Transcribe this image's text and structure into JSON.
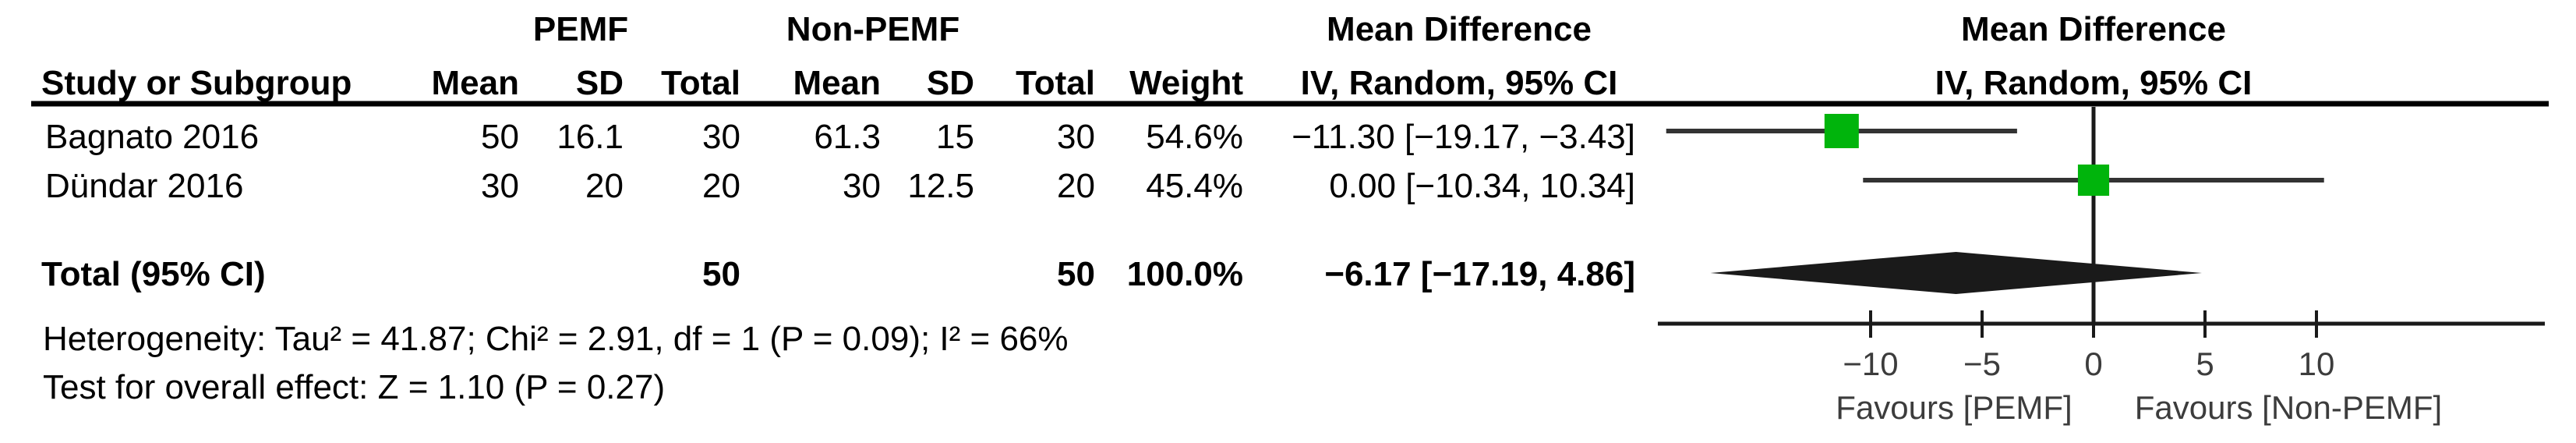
{
  "header": {
    "group1": "PEMF",
    "group2": "Non-PEMF",
    "effect_col_title": "Mean Difference",
    "effect_col_subtitle": "IV, Random, 95% CI",
    "plot_title": "Mean Difference",
    "plot_subtitle": "IV, Random, 95% CI",
    "study_col": "Study or Subgroup",
    "cols": {
      "mean1": "Mean",
      "sd1": "SD",
      "total1": "Total",
      "mean2": "Mean",
      "sd2": "SD",
      "total2": "Total",
      "weight": "Weight"
    }
  },
  "rows": [
    {
      "study": "Bagnato 2016",
      "mean1": "50",
      "sd1": "16.1",
      "total1": "30",
      "mean2": "61.3",
      "sd2": "15",
      "total2": "30",
      "weight": "54.6%",
      "ci_text": "−11.30 [−19.17, −3.43]"
    },
    {
      "study": "Dündar 2016",
      "mean1": "30",
      "sd1": "20",
      "total1": "20",
      "mean2": "30",
      "sd2": "12.5",
      "total2": "20",
      "weight": "45.4%",
      "ci_text": "0.00 [−10.34, 10.34]"
    }
  ],
  "total_row": {
    "label": "Total (95% CI)",
    "total1": "50",
    "total2": "50",
    "weight": "100.0%",
    "ci_text": "−6.17 [−17.19, 4.86]"
  },
  "footnotes": {
    "heterogeneity": "Heterogeneity: Tau² = 41.87; Chi² = 2.91, df = 1 (P = 0.09); I² = 66%",
    "overall_effect": "Test for overall effect: Z = 1.10 (P = 0.27)"
  },
  "axis_labels": {
    "favours_left": "Favours [PEMF]",
    "favours_right": "Favours [Non-PEMF]"
  },
  "chart_data": {
    "type": "forest",
    "effect_measure": "Mean Difference",
    "method": "IV, Random, 95% CI",
    "studies": [
      {
        "name": "Bagnato 2016",
        "md": -11.3,
        "ci_low": -19.17,
        "ci_high": -3.43,
        "weight_pct": 54.6
      },
      {
        "name": "Dündar 2016",
        "md": 0.0,
        "ci_low": -10.34,
        "ci_high": 10.34,
        "weight_pct": 45.4
      }
    ],
    "total": {
      "md": -6.17,
      "ci_low": -17.19,
      "ci_high": 4.86,
      "weight_pct": 100.0
    },
    "x_ticks": [
      -10,
      -5,
      0,
      5,
      10
    ],
    "x_axis_range": [
      -19.6,
      20.2
    ],
    "zero_line": 0,
    "colors": {
      "square": "#00b40c",
      "ci_line": "#333333",
      "axis": "#1a1a1a"
    }
  }
}
